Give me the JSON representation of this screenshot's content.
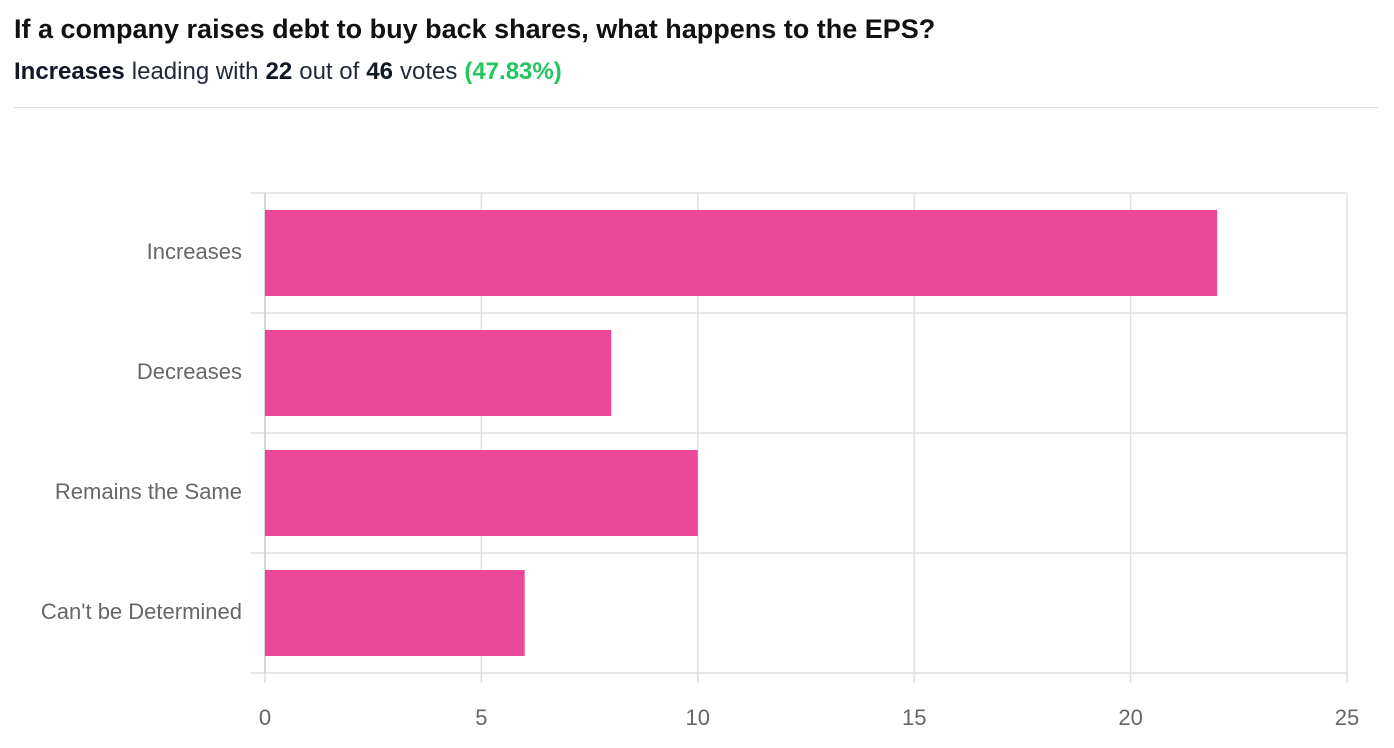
{
  "summary": {
    "leader": "Increases",
    "leading_text": "leading with",
    "leader_votes": 22,
    "out_of_text": "out of",
    "total_votes": 46,
    "votes_text": "votes",
    "percent_label": "(47.83%)"
  },
  "chart_data": {
    "type": "bar",
    "orientation": "horizontal",
    "title": "If a company raises debt to buy back shares, what happens to the EPS?",
    "categories": [
      "Increases",
      "Decreases",
      "Remains the Same",
      "Can't be Determined"
    ],
    "values": [
      22,
      8,
      10,
      6
    ],
    "color": "#ec4899",
    "xlim": [
      0,
      25
    ],
    "xticks": [
      0,
      5,
      10,
      15,
      20,
      25
    ],
    "grid": true
  }
}
